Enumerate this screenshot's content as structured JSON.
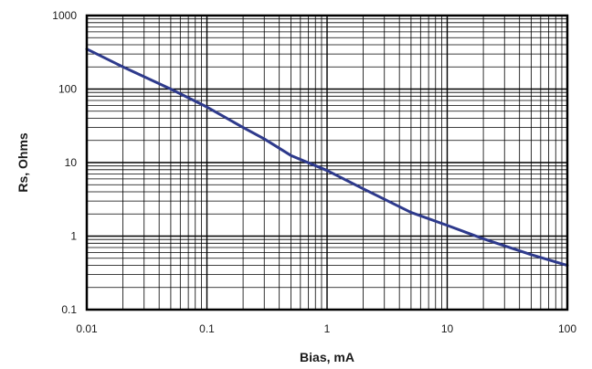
{
  "chart_data": {
    "type": "line",
    "xlabel": "Bias, mA",
    "ylabel": "Rs, Ohms",
    "x_scale": "log",
    "y_scale": "log",
    "xlim": [
      0.01,
      100
    ],
    "ylim": [
      0.1,
      1000
    ],
    "x_ticks": [
      "0.01",
      "0.1",
      "1",
      "10",
      "100"
    ],
    "y_ticks": [
      "0.1",
      "1",
      "10",
      "100",
      "1000"
    ],
    "grid": true,
    "series": [
      {
        "color": "#2e3a8c",
        "x": [
          0.01,
          0.02,
          0.05,
          0.1,
          0.2,
          0.3,
          0.5,
          1,
          2,
          5,
          10,
          20,
          50,
          100
        ],
        "y": [
          350,
          200,
          100,
          57,
          30,
          21,
          12.5,
          7.8,
          4.4,
          2.1,
          1.4,
          0.92,
          0.56,
          0.4
        ]
      }
    ]
  }
}
